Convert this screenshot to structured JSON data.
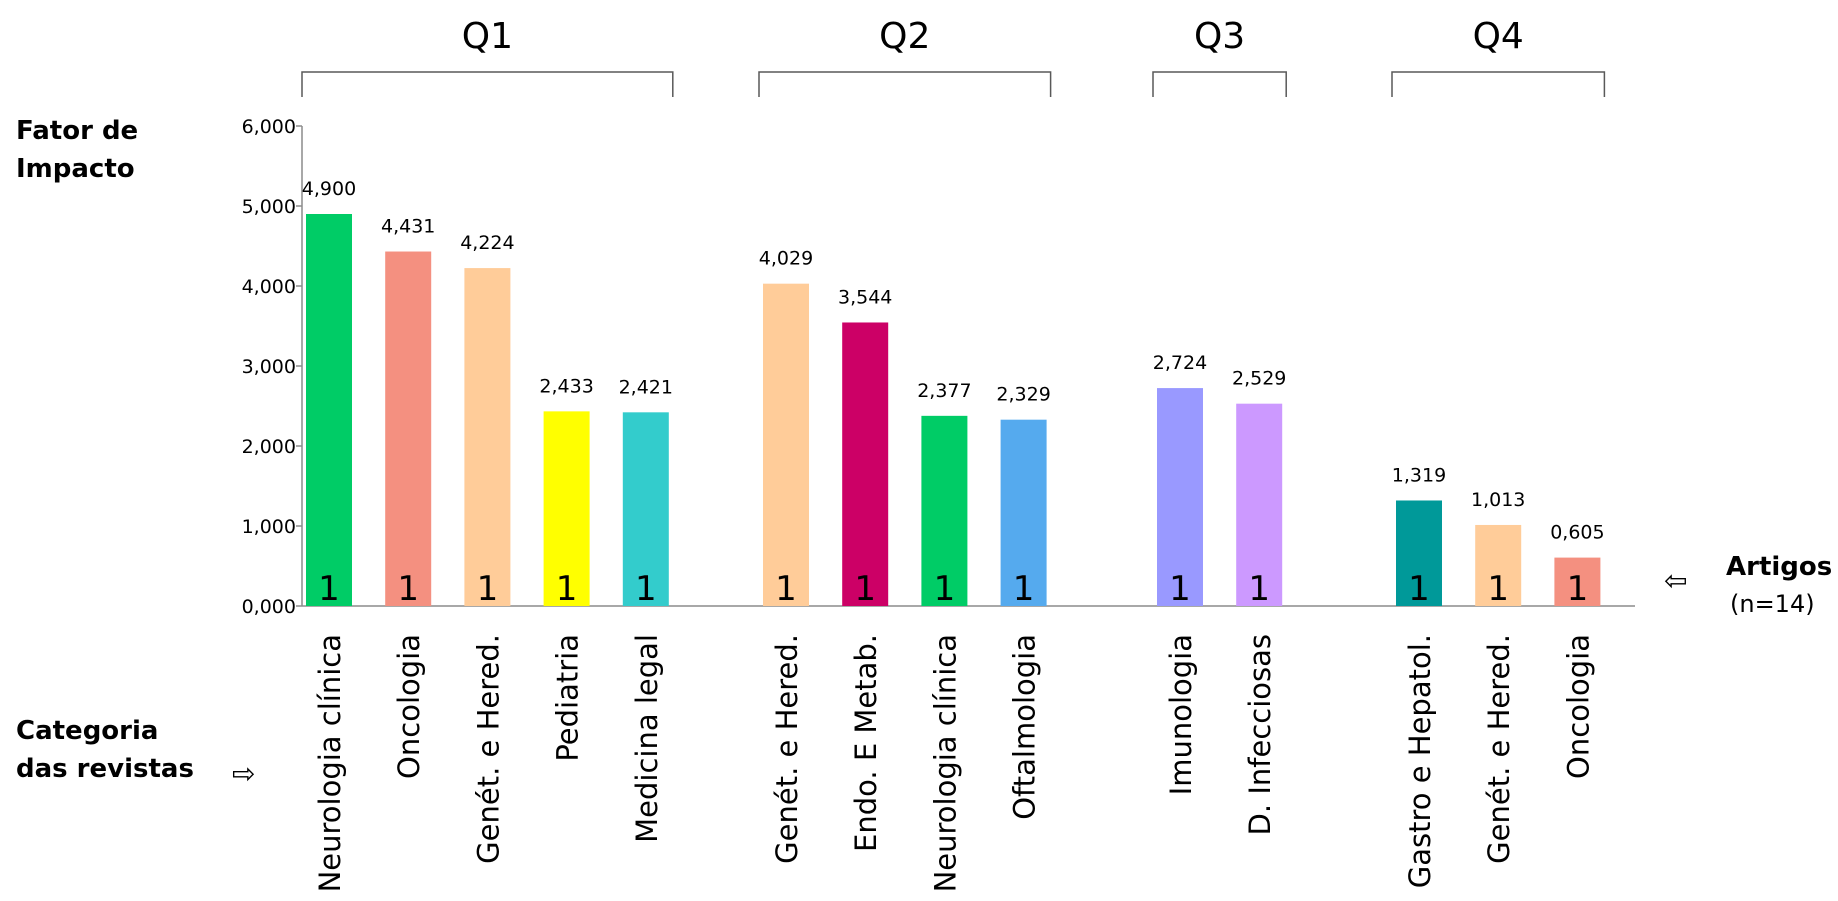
{
  "chart_data": {
    "type": "bar",
    "ylabel": "Fator de Impacto",
    "xlabel": "Categoria das revistas",
    "ylim": [
      0,
      6
    ],
    "yticks": [
      "0,000",
      "1,000",
      "2,000",
      "3,000",
      "4,000",
      "5,000",
      "6,000"
    ],
    "groups": [
      {
        "name": "Q1",
        "bars": [
          {
            "category": "Neurologia clínica",
            "value": 4.9,
            "label": "4,900",
            "artigos": "1",
            "color": "#00cc66"
          },
          {
            "category": "Oncologia",
            "value": 4.431,
            "label": "4,431",
            "artigos": "1",
            "color": "#f49080"
          },
          {
            "category": "Genét. e Hered.",
            "value": 4.224,
            "label": "4,224",
            "artigos": "1",
            "color": "#ffcc99"
          },
          {
            "category": "Pediatria",
            "value": 2.433,
            "label": "2,433",
            "artigos": "1",
            "color": "#ffff00"
          },
          {
            "category": "Medicina legal",
            "value": 2.421,
            "label": "2,421",
            "artigos": "1",
            "color": "#33cccc"
          }
        ]
      },
      {
        "name": "Q2",
        "bars": [
          {
            "category": "Genét. e Hered.",
            "value": 4.029,
            "label": "4,029",
            "artigos": "1",
            "color": "#ffcc99"
          },
          {
            "category": "Endo. E Metab.",
            "value": 3.544,
            "label": "3,544",
            "artigos": "1",
            "color": "#cc0066"
          },
          {
            "category": "Neurologia clínica",
            "value": 2.377,
            "label": "2,377",
            "artigos": "1",
            "color": "#00cc66"
          },
          {
            "category": "Oftalmologia",
            "value": 2.329,
            "label": "2,329",
            "artigos": "1",
            "color": "#55aaee"
          }
        ]
      },
      {
        "name": "Q3",
        "bars": [
          {
            "category": "Imunologia",
            "value": 2.724,
            "label": "2,724",
            "artigos": "1",
            "color": "#9999ff"
          },
          {
            "category": "D. Infecciosas",
            "value": 2.529,
            "label": "2,529",
            "artigos": "1",
            "color": "#cc99ff"
          }
        ]
      },
      {
        "name": "Q4",
        "bars": [
          {
            "category": "Gastro e Hepatol.",
            "value": 1.319,
            "label": "1,319",
            "artigos": "1",
            "color": "#009999"
          },
          {
            "category": "Genét. e Hered.",
            "value": 1.013,
            "label": "1,013",
            "artigos": "1",
            "color": "#ffcc99"
          },
          {
            "category": "Oncologia",
            "value": 0.605,
            "label": "0,605",
            "artigos": "1",
            "color": "#f49080"
          }
        ]
      }
    ]
  },
  "labels": {
    "y_title_line1": "Fator de",
    "y_title_line2": "Impacto",
    "x_title_line1": "Categoria",
    "x_title_line2": "das revistas",
    "artigos_title": "Artigos",
    "artigos_count": "(n=14)"
  }
}
